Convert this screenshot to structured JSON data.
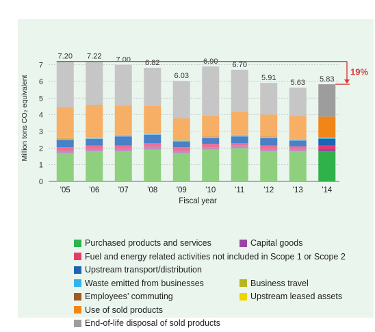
{
  "chart_data": {
    "type": "bar",
    "stacked": true,
    "categories": [
      "'05",
      "'06",
      "'07",
      "'08",
      "'09",
      "'10",
      "'11",
      "'12",
      "'13",
      "'14"
    ],
    "totals": [
      "7.20",
      "7.22",
      "7.00",
      "6.82",
      "6.03",
      "6.90",
      "6.70",
      "5.91",
      "5.63",
      "5.83"
    ],
    "xlabel": "Fiscal year",
    "ylabel": "Million tons CO₂ equivalent",
    "ylim": [
      0,
      7.6
    ],
    "yticks": [
      0,
      1,
      2,
      3,
      4,
      5,
      6,
      7
    ],
    "grid": true,
    "annotation": {
      "text": "19%",
      "from_value": 7.2,
      "to_value": 5.83
    },
    "series": [
      {
        "name": "Purchased products and services",
        "values": [
          1.7,
          1.8,
          1.8,
          1.9,
          1.7,
          1.9,
          2.0,
          1.8,
          1.8,
          1.8
        ]
      },
      {
        "name": "Capital goods",
        "values": [
          0.15,
          0.15,
          0.15,
          0.2,
          0.15,
          0.15,
          0.15,
          0.15,
          0.15,
          0.15
        ]
      },
      {
        "name": "Fuel and energy related activities not included in Scope 1 or Scope 2",
        "values": [
          0.2,
          0.2,
          0.2,
          0.2,
          0.2,
          0.2,
          0.15,
          0.2,
          0.15,
          0.2
        ]
      },
      {
        "name": "Upstream transport/distribution",
        "values": [
          0.45,
          0.4,
          0.55,
          0.5,
          0.35,
          0.35,
          0.4,
          0.45,
          0.35,
          0.4
        ]
      },
      {
        "name": "Waste emitted from businesses",
        "values": [
          0.05,
          0.05,
          0.05,
          0.05,
          0.05,
          0.05,
          0.05,
          0.05,
          0.05,
          0.05
        ]
      },
      {
        "name": "Business travel",
        "values": [
          0.02,
          0.02,
          0.02,
          0.02,
          0.02,
          0.02,
          0.02,
          0.02,
          0.02,
          0.02
        ]
      },
      {
        "name": "Employees’ commuting",
        "values": [
          0.02,
          0.02,
          0.02,
          0.02,
          0.02,
          0.02,
          0.02,
          0.02,
          0.02,
          0.02
        ]
      },
      {
        "name": "Upstream leased assets",
        "values": [
          0.01,
          0.01,
          0.01,
          0.01,
          0.01,
          0.01,
          0.01,
          0.01,
          0.01,
          0.01
        ]
      },
      {
        "name": "Use of sold products",
        "values": [
          1.85,
          1.95,
          1.74,
          1.62,
          1.28,
          1.25,
          1.4,
          1.31,
          1.38,
          1.24
        ]
      },
      {
        "name": "End-of-life disposal of sold products",
        "values": [
          2.75,
          2.62,
          2.46,
          2.3,
          2.25,
          2.95,
          2.5,
          1.9,
          1.7,
          1.94
        ]
      }
    ],
    "colors_in_image": [
      "#8fd07f",
      "#c28ac7",
      "#ef6e91",
      "#4b80c6",
      "#7fc8ef",
      "#c9c63f",
      "#c18257",
      "#f4e13f",
      "#f7ae65",
      "#c6c6c6"
    ],
    "colors_highlight": [
      "#2fb24a",
      "#9a45a2",
      "#e63a6c",
      "#1e63b5",
      "#2fb3ea",
      "#b5b51c",
      "#a05a1f",
      "#f0d400",
      "#f28518",
      "#9d9d9d"
    ],
    "legend_position": "bottom",
    "legend_rows": [
      [
        0,
        1
      ],
      [
        2
      ],
      [
        3
      ],
      [
        4,
        5
      ],
      [
        6,
        7
      ],
      [
        8
      ],
      [
        9
      ]
    ]
  }
}
